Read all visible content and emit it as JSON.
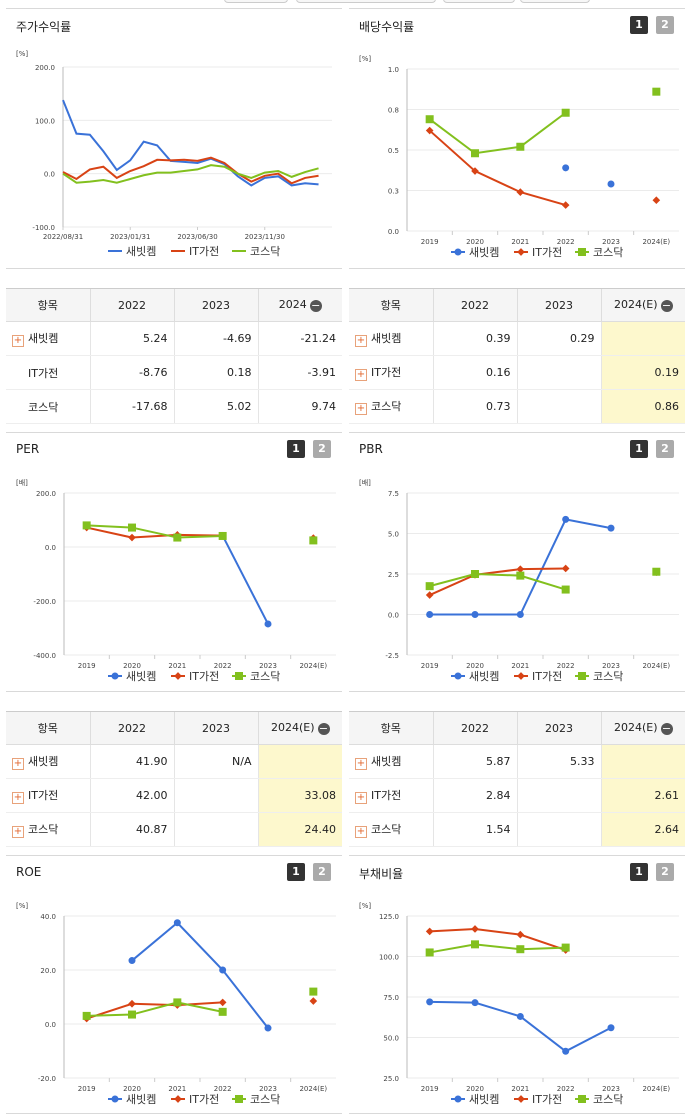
{
  "colors": {
    "s1": "#3a72d8",
    "s2": "#d84315",
    "s3": "#82c01e"
  },
  "legend": [
    "새빗켐",
    "IT가전",
    "코스닥"
  ],
  "stock_return": {
    "title": "주가수익률",
    "unit": "[%]",
    "y_ticks": [
      "200.0",
      "100.0",
      "0.0",
      "-100.0"
    ],
    "x_ticks": [
      "2022/08/31",
      "2023/01/31",
      "2023/06/30",
      "2023/11/30"
    ],
    "chart_data": {
      "type": "line",
      "ylim": [
        -100,
        200
      ],
      "x_range": [
        0,
        20
      ],
      "x_tick_positions": [
        0,
        5,
        10,
        15
      ],
      "series": [
        {
          "name": "새빗켐",
          "values": [
            138,
            75,
            73,
            42,
            7,
            25,
            60,
            53,
            24,
            22,
            20,
            28,
            18,
            -5,
            -22,
            -8,
            -5,
            -22,
            -18,
            -20
          ]
        },
        {
          "name": "IT가전",
          "values": [
            3,
            -10,
            8,
            13,
            -8,
            5,
            14,
            26,
            25,
            26,
            24,
            30,
            20,
            0,
            -15,
            -4,
            0,
            -18,
            -8,
            -4
          ]
        },
        {
          "name": "코스닥",
          "values": [
            0,
            -17,
            -15,
            -12,
            -17,
            -10,
            -3,
            2,
            2,
            5,
            8,
            16,
            13,
            0,
            -8,
            2,
            5,
            -6,
            3,
            10
          ]
        }
      ]
    }
  },
  "dividend": {
    "title": "배당수익률",
    "unit": "[%]",
    "y_ticks": [
      "1.0",
      "0.8",
      "0.5",
      "0.3",
      "0.0"
    ],
    "categories": [
      "2019",
      "2020",
      "2021",
      "2022",
      "2023",
      "2024(E)"
    ],
    "chart_data": {
      "type": "line",
      "categories": [
        "2019",
        "2020",
        "2021",
        "2022",
        "2023",
        "2024(E)"
      ],
      "ylim": [
        0,
        1.0
      ],
      "series": [
        {
          "name": "새빗켐",
          "values": [
            null,
            null,
            null,
            0.39,
            0.29,
            null
          ],
          "isolated": [
            3,
            4
          ]
        },
        {
          "name": "IT가전",
          "values": [
            0.62,
            0.37,
            0.24,
            0.16,
            null,
            0.19
          ],
          "isolated": [
            5
          ]
        },
        {
          "name": "코스닥",
          "values": [
            0.69,
            0.48,
            0.52,
            0.73,
            null,
            0.86
          ],
          "isolated": [
            5
          ]
        }
      ]
    }
  },
  "per": {
    "title": "PER",
    "unit": "[배]",
    "y_ticks": [
      "200.0",
      "0.0",
      "-200.0",
      "-400.0"
    ],
    "categories": [
      "2019",
      "2020",
      "2021",
      "2022",
      "2023",
      "2024(E)"
    ],
    "chart_data": {
      "type": "line",
      "categories": [
        "2019",
        "2020",
        "2021",
        "2022",
        "2023",
        "2024(E)"
      ],
      "ylim": [
        -400,
        200
      ],
      "series": [
        {
          "name": "새빗켐",
          "values": [
            null,
            null,
            null,
            41.9,
            -285,
            null
          ],
          "isolated": []
        },
        {
          "name": "IT가전",
          "values": [
            72,
            35,
            45,
            42.0,
            null,
            33.08
          ],
          "isolated": [
            5
          ]
        },
        {
          "name": "코스닥",
          "values": [
            80,
            72,
            35,
            40.87,
            null,
            24.4
          ],
          "isolated": [
            5
          ]
        }
      ]
    }
  },
  "pbr": {
    "title": "PBR",
    "unit": "[배]",
    "y_ticks": [
      "7.5",
      "5.0",
      "2.5",
      "0.0",
      "-2.5"
    ],
    "categories": [
      "2019",
      "2020",
      "2021",
      "2022",
      "2023",
      "2024(E)"
    ],
    "chart_data": {
      "type": "line",
      "categories": [
        "2019",
        "2020",
        "2021",
        "2022",
        "2023",
        "2024(E)"
      ],
      "ylim": [
        -2.5,
        7.5
      ],
      "series": [
        {
          "name": "새빗켐",
          "values": [
            0,
            0,
            0,
            5.87,
            5.33,
            null
          ],
          "isolated": []
        },
        {
          "name": "IT가전",
          "values": [
            1.2,
            2.45,
            2.8,
            2.84,
            null,
            2.61
          ],
          "isolated": [
            5
          ]
        },
        {
          "name": "코스닥",
          "values": [
            1.75,
            2.5,
            2.4,
            1.54,
            null,
            2.64
          ],
          "isolated": [
            5
          ]
        }
      ]
    }
  },
  "roe": {
    "title": "ROE",
    "unit": "[%]",
    "y_ticks": [
      "40.0",
      "20.0",
      "0.0",
      "-20.0"
    ],
    "categories": [
      "2019",
      "2020",
      "2021",
      "2022",
      "2023",
      "2024(E)"
    ],
    "chart_data": {
      "type": "line",
      "categories": [
        "2019",
        "2020",
        "2021",
        "2022",
        "2023",
        "2024(E)"
      ],
      "ylim": [
        -20,
        40
      ],
      "series": [
        {
          "name": "새빗켐",
          "values": [
            null,
            23.5,
            37.5,
            20,
            -1.5,
            null
          ],
          "isolated": []
        },
        {
          "name": "IT가전",
          "values": [
            2,
            7.5,
            7,
            8,
            null,
            8.5
          ],
          "isolated": [
            5
          ]
        },
        {
          "name": "코스닥",
          "values": [
            3,
            3.5,
            8,
            4.5,
            null,
            12
          ],
          "isolated": [
            5
          ]
        }
      ]
    }
  },
  "debt": {
    "title": "부채비율",
    "unit": "[%]",
    "y_ticks": [
      "125.0",
      "100.0",
      "75.0",
      "50.0",
      "25.0"
    ],
    "categories": [
      "2019",
      "2020",
      "2021",
      "2022",
      "2023",
      "2024(E)"
    ],
    "chart_data": {
      "type": "line",
      "categories": [
        "2019",
        "2020",
        "2021",
        "2022",
        "2023",
        "2024(E)"
      ],
      "ylim": [
        25,
        125
      ],
      "series": [
        {
          "name": "새빗켐",
          "values": [
            72,
            71.5,
            63,
            41.5,
            56,
            null
          ],
          "isolated": []
        },
        {
          "name": "IT가전",
          "values": [
            115.5,
            117,
            113.5,
            104,
            null,
            null
          ],
          "isolated": []
        },
        {
          "name": "코스닥",
          "values": [
            102.5,
            107.5,
            104.5,
            105.5,
            null,
            null
          ],
          "isolated": []
        }
      ]
    }
  },
  "tables": {
    "stock": {
      "headers": [
        "항목",
        "2022",
        "2023",
        "2024"
      ],
      "rows": [
        {
          "label": "새빗켐",
          "plus": true,
          "v": [
            "5.24",
            "-4.69",
            "-21.24"
          ]
        },
        {
          "label": "IT가전",
          "plus": false,
          "v": [
            "-8.76",
            "0.18",
            "-3.91"
          ]
        },
        {
          "label": "코스닥",
          "plus": false,
          "v": [
            "-17.68",
            "5.02",
            "9.74"
          ]
        }
      ]
    },
    "dividend": {
      "headers": [
        "항목",
        "2022",
        "2023",
        "2024(E)"
      ],
      "rows": [
        {
          "label": "새빗켐",
          "plus": true,
          "v": [
            "0.39",
            "0.29",
            ""
          ]
        },
        {
          "label": "IT가전",
          "plus": true,
          "v": [
            "0.16",
            "",
            "0.19"
          ]
        },
        {
          "label": "코스닥",
          "plus": true,
          "v": [
            "0.73",
            "",
            "0.86"
          ]
        }
      ]
    },
    "per": {
      "headers": [
        "항목",
        "2022",
        "2023",
        "2024(E)"
      ],
      "rows": [
        {
          "label": "새빗켐",
          "plus": true,
          "v": [
            "41.90",
            "N/A",
            ""
          ]
        },
        {
          "label": "IT가전",
          "plus": true,
          "v": [
            "42.00",
            "",
            "33.08"
          ]
        },
        {
          "label": "코스닥",
          "plus": true,
          "v": [
            "40.87",
            "",
            "24.40"
          ]
        }
      ]
    },
    "pbr": {
      "headers": [
        "항목",
        "2022",
        "2023",
        "2024(E)"
      ],
      "rows": [
        {
          "label": "새빗켐",
          "plus": true,
          "v": [
            "5.87",
            "5.33",
            ""
          ]
        },
        {
          "label": "IT가전",
          "plus": true,
          "v": [
            "2.84",
            "",
            "2.61"
          ]
        },
        {
          "label": "코스닥",
          "plus": true,
          "v": [
            "1.54",
            "",
            "2.64"
          ]
        }
      ]
    }
  },
  "toggle": {
    "one": "1",
    "two": "2"
  },
  "minus_glyph": "−",
  "plus_glyph": "+"
}
